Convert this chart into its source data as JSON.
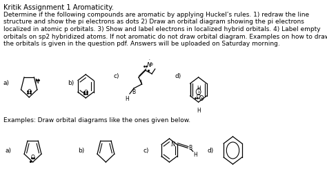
{
  "title": "Kritik Assignment 1 Aromaticity.",
  "paragraph": "Determine if the following compounds are aromatic by applying Huckel’s rules. 1) redraw the line\nstructure and show the pi electrons as dots 2) Draw an orbital diagram showing the pi electrons\nlocalized in atomic p orbitals. 3) Show and label electrons in localized hybrid orbitals. 4) Label empty\norbitals on sp2 hybridized atoms. If not aromatic do not draw orbital diagram. Examples on how to draw\nthe orbitals is given in the question pdf. Answers will be uploaded on Saturday morning.",
  "examples_label": "Examples: Draw orbital diagrams like the ones given below.",
  "bg_color": "#ffffff",
  "text_color": "#000000",
  "font_size_title": 7.2,
  "font_size_body": 6.5,
  "font_size_label": 6.5,
  "font_size_atom": 5.5,
  "font_size_dots": 5.5
}
